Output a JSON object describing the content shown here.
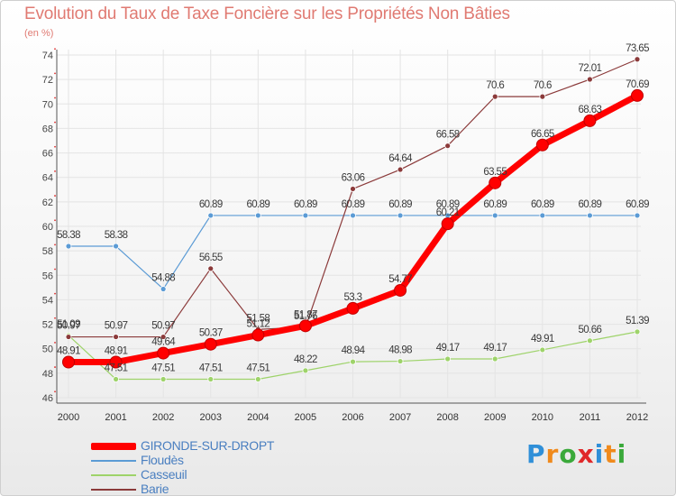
{
  "chart_data": {
    "type": "line",
    "title": "Evolution du Taux de Taxe Foncière sur les Propriétés Non Bâties",
    "subtitle": "(en %)",
    "x": [
      "2000",
      "2001",
      "2002",
      "2003",
      "2004",
      "2005",
      "2006",
      "2007",
      "2008",
      "2009",
      "2010",
      "2011",
      "2012"
    ],
    "ylim": [
      46,
      74
    ],
    "yticks": [
      46,
      48,
      50,
      52,
      54,
      56,
      58,
      60,
      62,
      64,
      66,
      68,
      70,
      72,
      74
    ],
    "series": [
      {
        "name": "GIRONDE-SUR-DROPT",
        "color": "#ff0000",
        "values": [
          48.91,
          48.91,
          49.64,
          50.37,
          51.12,
          51.87,
          53.3,
          54.77,
          60.21,
          63.55,
          66.65,
          68.63,
          70.69
        ],
        "labels": [
          "48.91",
          "48.91",
          "49.64",
          "50.37",
          "51.12",
          "51.87",
          "53.3",
          "54.77",
          "60.21",
          "63.55",
          "66.65",
          "68.63",
          "70.69"
        ]
      },
      {
        "name": "Floudès",
        "color": "#5b9bd5",
        "values": [
          58.38,
          58.38,
          54.88,
          60.89,
          60.89,
          60.89,
          60.89,
          60.89,
          60.89,
          60.89,
          60.89,
          60.89,
          60.89
        ],
        "labels": [
          "58.38",
          "58.38",
          "54.88",
          "60.89",
          "60.89",
          "60.89",
          "60.89",
          "60.89",
          "60.89",
          "60.89",
          "60.89",
          "60.89",
          "60.89"
        ]
      },
      {
        "name": "Casseuil",
        "color": "#9ed36a",
        "values": [
          51.09,
          47.51,
          47.51,
          47.51,
          47.51,
          48.22,
          48.94,
          48.98,
          49.17,
          49.17,
          49.91,
          50.66,
          51.39
        ],
        "labels": [
          "51.09",
          "47.51",
          "47.51",
          "47.51",
          "47.51",
          "48.22",
          "48.94",
          "48.98",
          "49.17",
          "49.17",
          "49.91",
          "50.66",
          "51.39"
        ]
      },
      {
        "name": "Barie",
        "color": "#8b3a3a",
        "values": [
          50.97,
          50.97,
          50.97,
          56.55,
          51.58,
          51.76,
          63.06,
          64.64,
          66.58,
          70.6,
          70.6,
          72.01,
          73.65
        ],
        "labels": [
          "50.97",
          "50.97",
          "50.97",
          "56.55",
          "51.58",
          "51.76",
          "63.06",
          "64.64",
          "66.58",
          "70.6",
          "70.6",
          "72.01",
          "73.65"
        ]
      }
    ]
  },
  "logo": {
    "letters": [
      "P",
      "r",
      "o",
      "x",
      "i",
      "t",
      "i"
    ],
    "colors": [
      "#2f8fd8",
      "#f08a1c",
      "#3aa93a",
      "#e0282a",
      "#2f8fd8",
      "#f08a1c",
      "#3aa93a"
    ]
  }
}
